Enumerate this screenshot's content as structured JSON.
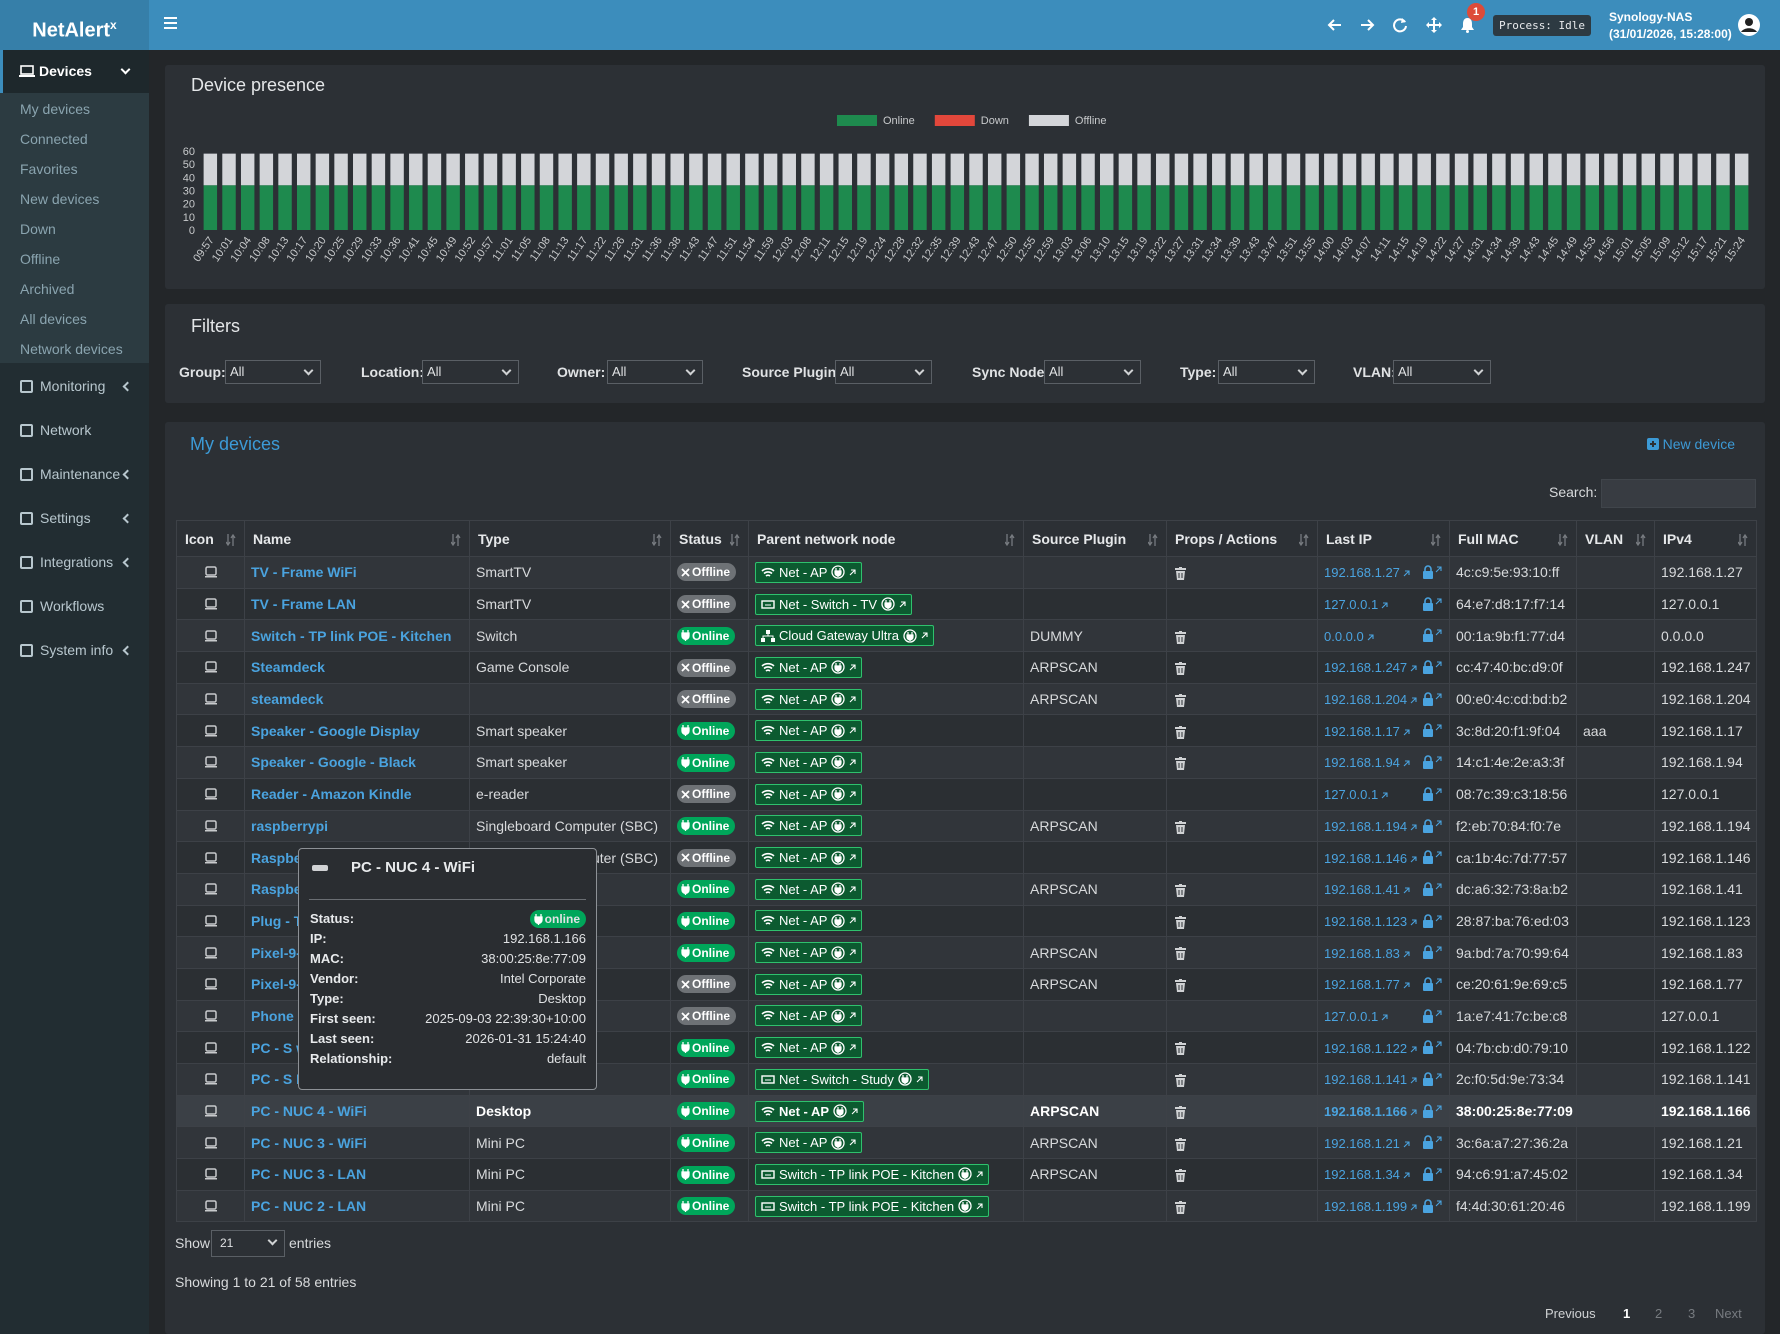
{
  "brand": {
    "name": "NetAlert",
    "sup": "x"
  },
  "topbar": {
    "badge": "1",
    "process": "Process: Idle",
    "host": "Synology-NAS",
    "timestamp": "(31/01/2026, 15:28:00)"
  },
  "sidebar": {
    "open": "Devices",
    "submenu": [
      "My devices",
      "Connected",
      "Favorites",
      "New devices",
      "Down",
      "Offline",
      "Archived",
      "All devices",
      "Network devices"
    ],
    "menu": [
      "Monitoring",
      "Network",
      "Maintenance",
      "Settings",
      "Integrations",
      "Workflows",
      "System info"
    ]
  },
  "chart_data": {
    "type": "bar",
    "stacked": true,
    "title": "Device presence",
    "categories": [
      "09:57",
      "10:01",
      "10:04",
      "10:08",
      "10:13",
      "10:17",
      "10:20",
      "10:25",
      "10:29",
      "10:33",
      "10:36",
      "10:41",
      "10:45",
      "10:49",
      "10:52",
      "10:57",
      "11:01",
      "11:05",
      "11:08",
      "11:13",
      "11:17",
      "11:22",
      "11:26",
      "11:31",
      "11:36",
      "11:38",
      "11:43",
      "11:47",
      "11:51",
      "11:54",
      "11:59",
      "12:03",
      "12:08",
      "12:11",
      "12:15",
      "12:19",
      "12:24",
      "12:28",
      "12:32",
      "12:35",
      "12:39",
      "12:43",
      "12:47",
      "12:50",
      "12:55",
      "12:59",
      "13:03",
      "13:06",
      "13:10",
      "13:15",
      "13:19",
      "13:22",
      "13:27",
      "13:31",
      "13:34",
      "13:39",
      "13:43",
      "13:47",
      "13:51",
      "13:55",
      "14:00",
      "14:03",
      "14:07",
      "14:11",
      "14:15",
      "14:19",
      "14:22",
      "14:27",
      "14:31",
      "14:34",
      "14:39",
      "14:43",
      "14:45",
      "14:49",
      "14:53",
      "14:56",
      "15:01",
      "15:05",
      "15:09",
      "15:12",
      "15:17",
      "15:21",
      "15:24"
    ],
    "series": [
      {
        "name": "Online",
        "color": "#1e8a4e",
        "values": [
          34,
          34,
          34,
          34,
          34,
          34,
          34,
          34,
          34,
          34,
          34,
          34,
          34,
          34,
          34,
          34,
          34,
          34,
          34,
          34,
          34,
          34,
          34,
          34,
          34,
          34,
          34,
          34,
          34,
          34,
          34,
          34,
          34,
          34,
          34,
          34,
          34,
          34,
          34,
          34,
          34,
          34,
          34,
          34,
          34,
          34,
          34,
          34,
          34,
          34,
          34,
          34,
          34,
          34,
          34,
          34,
          34,
          34,
          34,
          34,
          34,
          34,
          34,
          34,
          34,
          34,
          34,
          34,
          34,
          34,
          34,
          34,
          34,
          34,
          34,
          34,
          34,
          34,
          34,
          34,
          34,
          34,
          34
        ]
      },
      {
        "name": "Down",
        "color": "#e2473b",
        "values": [
          0,
          0,
          0,
          0,
          0,
          0,
          0,
          0,
          0,
          0,
          0,
          0,
          0,
          0,
          0,
          0,
          0,
          0,
          0,
          0,
          0,
          0,
          0,
          0,
          0,
          0,
          0,
          0,
          0,
          0,
          0,
          0,
          0,
          0,
          0,
          0,
          0,
          0,
          0,
          0,
          0,
          0,
          0,
          0,
          0,
          0,
          0,
          0,
          0,
          0,
          0,
          0,
          0,
          0,
          0,
          0,
          0,
          0,
          0,
          0,
          0,
          0,
          0,
          0,
          0,
          0,
          0,
          0,
          0,
          0,
          0,
          0,
          0,
          0,
          0,
          0,
          0,
          0,
          0,
          0,
          0,
          0,
          0
        ]
      },
      {
        "name": "Offline",
        "color": "#d3d5d9",
        "values": [
          24,
          24,
          24,
          24,
          24,
          24,
          24,
          24,
          24,
          24,
          24,
          24,
          24,
          24,
          24,
          24,
          24,
          24,
          24,
          24,
          24,
          24,
          24,
          24,
          24,
          24,
          24,
          24,
          24,
          24,
          24,
          24,
          24,
          24,
          24,
          24,
          24,
          24,
          24,
          24,
          24,
          24,
          24,
          24,
          24,
          24,
          24,
          24,
          24,
          24,
          24,
          24,
          24,
          24,
          24,
          24,
          24,
          24,
          24,
          24,
          24,
          24,
          24,
          24,
          24,
          24,
          24,
          24,
          24,
          24,
          24,
          24,
          24,
          24,
          24,
          24,
          24,
          24,
          24,
          24,
          24,
          24,
          24
        ]
      }
    ],
    "ylim": [
      0,
      60
    ],
    "yticks": [
      0,
      10,
      20,
      30,
      40,
      50,
      60
    ],
    "grid": false
  },
  "filters": {
    "title": "Filters",
    "items": [
      {
        "label": "Group:",
        "value": "All"
      },
      {
        "label": "Location:",
        "value": "All"
      },
      {
        "label": "Owner:",
        "value": "All"
      },
      {
        "label": "Source Plugin:",
        "value": "All"
      },
      {
        "label": "Sync Node:",
        "value": "All"
      },
      {
        "label": "Type:",
        "value": "All"
      },
      {
        "label": "VLAN:",
        "value": "All"
      }
    ]
  },
  "devices": {
    "title": "My devices",
    "new": "New device",
    "search": "Search:",
    "columns": [
      "Icon",
      "Name",
      "Type",
      "Status",
      "Parent network node",
      "Source Plugin",
      "Props / Actions",
      "Last IP",
      "Full MAC",
      "VLAN",
      "IPv4"
    ],
    "rows": [
      {
        "name": "TV - Frame WiFi",
        "type": "SmartTV",
        "status": "Offline",
        "parent": "Net - AP",
        "link": "wifi",
        "ip": "192.168.1.27",
        "mac": "4c:c9:5e:93:10:ff",
        "ipv4": "192.168.1.27",
        "delete": true
      },
      {
        "name": "TV - Frame LAN",
        "type": "SmartTV",
        "status": "Offline",
        "parent": "Net - Switch - TV",
        "link": "lan",
        "ip": "127.0.0.1",
        "mac": "64:e7:d8:17:f7:14",
        "ipv4": "127.0.0.1",
        "delete": false
      },
      {
        "name": "Switch - TP link POE - Kitchen",
        "type": "Switch",
        "status": "Online",
        "parent": "Cloud Gateway Ultra",
        "link": "hub",
        "plugin": "DUMMY",
        "ip": "0.0.0.0",
        "mac": "00:1a:9b:f1:77:d4",
        "ipv4": "0.0.0.0",
        "delete": true
      },
      {
        "name": "Steamdeck",
        "type": "Game Console",
        "status": "Offline",
        "parent": "Net - AP",
        "link": "wifi",
        "plugin": "ARPSCAN",
        "ip": "192.168.1.247",
        "mac": "cc:47:40:bc:d9:0f",
        "ipv4": "192.168.1.247",
        "delete": true
      },
      {
        "name": "steamdeck",
        "status": "Offline",
        "parent": "Net - AP",
        "link": "wifi",
        "plugin": "ARPSCAN",
        "ip": "192.168.1.204",
        "mac": "00:e0:4c:cd:bd:b2",
        "ipv4": "192.168.1.204",
        "delete": true
      },
      {
        "name": "Speaker - Google Display",
        "type": "Smart speaker",
        "status": "Online",
        "parent": "Net - AP",
        "link": "wifi",
        "ip": "192.168.1.17",
        "mac": "3c:8d:20:f1:9f:04",
        "vlan": "aaa",
        "ipv4": "192.168.1.17",
        "delete": true
      },
      {
        "name": "Speaker - Google - Black",
        "type": "Smart speaker",
        "status": "Online",
        "parent": "Net - AP",
        "link": "wifi",
        "ip": "192.168.1.94",
        "mac": "14:c1:4e:2e:a3:3f",
        "ipv4": "192.168.1.94",
        "delete": true
      },
      {
        "name": "Reader - Amazon Kindle",
        "type": "e-reader",
        "status": "Offline",
        "parent": "Net - AP",
        "link": "wifi",
        "ip": "127.0.0.1",
        "mac": "08:7c:39:c3:18:56",
        "ipv4": "127.0.0.1",
        "delete": false
      },
      {
        "name": "raspberrypi",
        "type": "Singleboard Computer (SBC)",
        "status": "Online",
        "parent": "Net - AP",
        "link": "wifi",
        "plugin": "ARPSCAN",
        "ip": "192.168.1.194",
        "mac": "f2:eb:70:84:f0:7e",
        "ipv4": "192.168.1.194",
        "delete": true
      },
      {
        "name": "Raspbe",
        "type": "Singleboard Computer (SBC)",
        "status": "Offline",
        "parent": "Net - AP",
        "link": "wifi",
        "ip": "192.168.1.146",
        "mac": "ca:1b:4c:7d:77:57",
        "ipv4": "192.168.1.146",
        "delete": false
      },
      {
        "name": "Raspbe",
        "status": "Online",
        "parent": "Net - AP",
        "link": "wifi",
        "plugin": "ARPSCAN",
        "ip": "192.168.1.41",
        "mac": "dc:a6:32:73:8a:b2",
        "ipv4": "192.168.1.41",
        "delete": true
      },
      {
        "name": "Plug - T",
        "status": "Online",
        "parent": "Net - AP",
        "link": "wifi",
        "ip": "192.168.1.123",
        "mac": "28:87:ba:76:ed:03",
        "ipv4": "192.168.1.123",
        "delete": true
      },
      {
        "name": "Pixel-9-",
        "status": "Online",
        "parent": "Net - AP",
        "link": "wifi",
        "plugin": "ARPSCAN",
        "ip": "192.168.1.83",
        "mac": "9a:bd:7a:70:99:64",
        "ipv4": "192.168.1.83",
        "delete": true
      },
      {
        "name": "Pixel-9-",
        "status": "Offline",
        "parent": "Net - AP",
        "link": "wifi",
        "plugin": "ARPSCAN",
        "ip": "192.168.1.77",
        "mac": "ce:20:61:9e:69:c5",
        "ipv4": "192.168.1.77",
        "delete": true
      },
      {
        "name": "Phone -",
        "status": "Offline",
        "parent": "Net - AP",
        "link": "wifi",
        "ip": "127.0.0.1",
        "mac": "1a:e7:41:7c:be:c8",
        "ipv4": "127.0.0.1",
        "delete": false
      },
      {
        "name": "PC - S w",
        "status": "Online",
        "parent": "Net - AP",
        "link": "wifi",
        "ip": "192.168.1.122",
        "mac": "04:7b:cb:d0:79:10",
        "ipv4": "192.168.1.122",
        "delete": true
      },
      {
        "name": "PC - S L",
        "status": "Online",
        "parent": "Net - Switch - Study",
        "link": "lan",
        "ip": "192.168.1.141",
        "mac": "2c:f0:5d:9e:73:34",
        "ipv4": "192.168.1.141",
        "delete": true
      },
      {
        "name": "PC - NUC 4 - WiFi",
        "type": "Desktop",
        "status": "Online",
        "parent": "Net - AP",
        "link": "wifi",
        "plugin": "ARPSCAN",
        "ip": "192.168.1.166",
        "mac": "38:00:25:8e:77:09",
        "ipv4": "192.168.1.166",
        "delete": true,
        "highlight": true
      },
      {
        "name": "PC - NUC 3 - WiFi",
        "type": "Mini PC",
        "status": "Online",
        "parent": "Net - AP",
        "link": "wifi",
        "plugin": "ARPSCAN",
        "ip": "192.168.1.21",
        "mac": "3c:6a:a7:27:36:2a",
        "ipv4": "192.168.1.21",
        "delete": true
      },
      {
        "name": "PC - NUC 3 - LAN",
        "type": "Mini PC",
        "status": "Online",
        "parent": "Switch - TP link POE - Kitchen",
        "link": "lan",
        "plugin": "ARPSCAN",
        "ip": "192.168.1.34",
        "mac": "94:c6:91:a7:45:02",
        "ipv4": "192.168.1.34",
        "delete": true
      },
      {
        "name": "PC - NUC 2 - LAN",
        "type": "Mini PC",
        "status": "Online",
        "parent": "Switch - TP link POE - Kitchen",
        "link": "lan",
        "ip": "192.168.1.199",
        "mac": "f4:4d:30:61:20:46",
        "ipv4": "192.168.1.199",
        "delete": true
      }
    ],
    "show": "Show",
    "page_size": "21",
    "entries": "entries",
    "info": "Showing 1 to 21 of 58 entries",
    "pager": [
      "Previous",
      "1",
      "2",
      "3",
      "Next"
    ]
  },
  "tooltip": {
    "title": "PC - NUC 4 - WiFi",
    "fields": [
      {
        "label": "Status:",
        "value": "online"
      },
      {
        "label": "IP:",
        "value": "192.168.1.166"
      },
      {
        "label": "MAC:",
        "value": "38:00:25:8e:77:09"
      },
      {
        "label": "Vendor:",
        "value": "Intel Corporate"
      },
      {
        "label": "Type:",
        "value": "Desktop"
      },
      {
        "label": "First seen:",
        "value": "2025-09-03 22:39:30+10:00"
      },
      {
        "label": "Last seen:",
        "value": "2026-01-31 15:24:40"
      },
      {
        "label": "Relationship:",
        "value": "default"
      }
    ]
  }
}
